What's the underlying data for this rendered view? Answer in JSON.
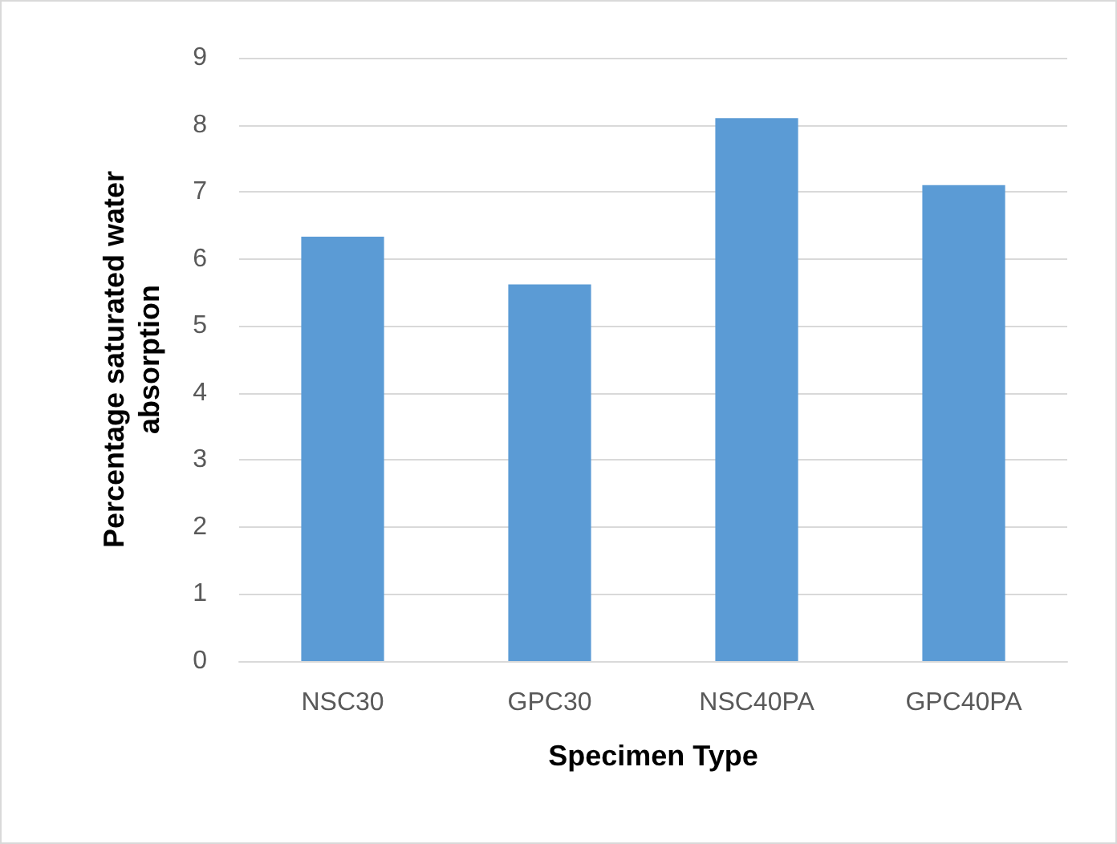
{
  "chart_data": {
    "type": "bar",
    "xlabel": "Specimen Type",
    "ylabel": "Percentage saturated water\nabsorption",
    "categories": [
      "NSC30",
      "GPC30",
      "NSC40PA",
      "GPC40PA"
    ],
    "values": [
      6.33,
      5.62,
      8.1,
      7.1
    ],
    "color": "#5b9bd5",
    "ylim": [
      0,
      9
    ],
    "yticks": [
      0,
      1,
      2,
      3,
      4,
      5,
      6,
      7,
      8,
      9
    ],
    "grid": "y"
  }
}
